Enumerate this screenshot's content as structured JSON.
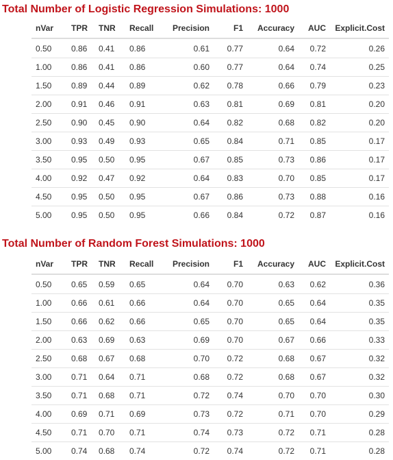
{
  "columns": [
    "nVar",
    "TPR",
    "TNR",
    "Recall",
    "Precision",
    "F1",
    "Accuracy",
    "AUC",
    "Explicit.Cost"
  ],
  "sections": [
    {
      "title": "Total Number of Logistic Regression Simulations: 1000",
      "rows": [
        [
          "0.50",
          "0.86",
          "0.41",
          "0.86",
          "0.61",
          "0.77",
          "0.64",
          "0.72",
          "0.26"
        ],
        [
          "1.00",
          "0.86",
          "0.41",
          "0.86",
          "0.60",
          "0.77",
          "0.64",
          "0.74",
          "0.25"
        ],
        [
          "1.50",
          "0.89",
          "0.44",
          "0.89",
          "0.62",
          "0.78",
          "0.66",
          "0.79",
          "0.23"
        ],
        [
          "2.00",
          "0.91",
          "0.46",
          "0.91",
          "0.63",
          "0.81",
          "0.69",
          "0.81",
          "0.20"
        ],
        [
          "2.50",
          "0.90",
          "0.45",
          "0.90",
          "0.64",
          "0.82",
          "0.68",
          "0.82",
          "0.20"
        ],
        [
          "3.00",
          "0.93",
          "0.49",
          "0.93",
          "0.65",
          "0.84",
          "0.71",
          "0.85",
          "0.17"
        ],
        [
          "3.50",
          "0.95",
          "0.50",
          "0.95",
          "0.67",
          "0.85",
          "0.73",
          "0.86",
          "0.17"
        ],
        [
          "4.00",
          "0.92",
          "0.47",
          "0.92",
          "0.64",
          "0.83",
          "0.70",
          "0.85",
          "0.17"
        ],
        [
          "4.50",
          "0.95",
          "0.50",
          "0.95",
          "0.67",
          "0.86",
          "0.73",
          "0.88",
          "0.16"
        ],
        [
          "5.00",
          "0.95",
          "0.50",
          "0.95",
          "0.66",
          "0.84",
          "0.72",
          "0.87",
          "0.16"
        ]
      ]
    },
    {
      "title": "Total Number of Random Forest Simulations: 1000",
      "rows": [
        [
          "0.50",
          "0.65",
          "0.59",
          "0.65",
          "0.64",
          "0.70",
          "0.63",
          "0.62",
          "0.36"
        ],
        [
          "1.00",
          "0.66",
          "0.61",
          "0.66",
          "0.64",
          "0.70",
          "0.65",
          "0.64",
          "0.35"
        ],
        [
          "1.50",
          "0.66",
          "0.62",
          "0.66",
          "0.65",
          "0.70",
          "0.65",
          "0.64",
          "0.35"
        ],
        [
          "2.00",
          "0.63",
          "0.69",
          "0.63",
          "0.69",
          "0.70",
          "0.67",
          "0.66",
          "0.33"
        ],
        [
          "2.50",
          "0.68",
          "0.67",
          "0.68",
          "0.70",
          "0.72",
          "0.68",
          "0.67",
          "0.32"
        ],
        [
          "3.00",
          "0.71",
          "0.64",
          "0.71",
          "0.68",
          "0.72",
          "0.68",
          "0.67",
          "0.32"
        ],
        [
          "3.50",
          "0.71",
          "0.68",
          "0.71",
          "0.72",
          "0.74",
          "0.70",
          "0.70",
          "0.30"
        ],
        [
          "4.00",
          "0.69",
          "0.71",
          "0.69",
          "0.73",
          "0.72",
          "0.71",
          "0.70",
          "0.29"
        ],
        [
          "4.50",
          "0.71",
          "0.70",
          "0.71",
          "0.74",
          "0.73",
          "0.72",
          "0.71",
          "0.28"
        ],
        [
          "5.00",
          "0.74",
          "0.68",
          "0.74",
          "0.72",
          "0.74",
          "0.72",
          "0.71",
          "0.28"
        ]
      ]
    }
  ],
  "colors": {
    "title": "#c0141b",
    "text": "#333333",
    "rule": "#e2e2e2",
    "header_rule": "#dddddd"
  }
}
